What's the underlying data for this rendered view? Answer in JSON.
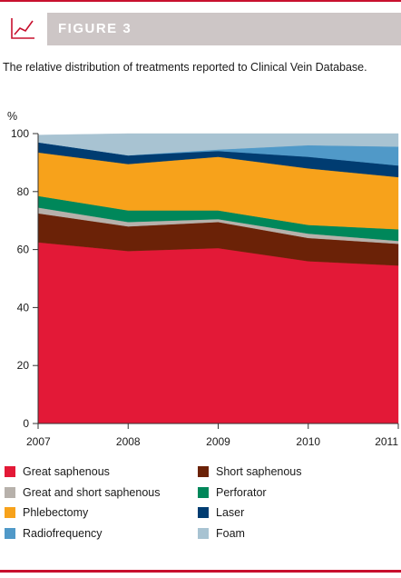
{
  "header": {
    "figure_label": "FIGURE 3",
    "icon": "line-chart-icon",
    "accent_color": "#c8102e"
  },
  "caption": "The relative distribution of treatments reported to Clinical Vein Database.",
  "chart_data": {
    "type": "area",
    "stacked": true,
    "title": "",
    "ylabel": "%",
    "xlabel": "",
    "x": [
      "2007",
      "2008",
      "2009",
      "2010",
      "2011"
    ],
    "ylim": [
      0,
      100
    ],
    "yticks": [
      "0",
      "20",
      "40",
      "60",
      "80",
      "100"
    ],
    "grid": false,
    "legend_position": "bottom",
    "series": [
      {
        "name": "Great saphenous",
        "color": "#e31937",
        "values": [
          62.5,
          59.5,
          60.5,
          56,
          54.5
        ]
      },
      {
        "name": "Short saphenous",
        "color": "#6b2207",
        "values": [
          10,
          8.5,
          9,
          8,
          7.5
        ]
      },
      {
        "name": "Great and short saphenous",
        "color": "#b7b1ab",
        "values": [
          2,
          1.5,
          1,
          1.5,
          1
        ]
      },
      {
        "name": "Perforator",
        "color": "#00875a",
        "values": [
          4,
          4,
          3,
          3,
          4
        ]
      },
      {
        "name": "Phlebectomy",
        "color": "#f7a21b",
        "values": [
          15,
          16,
          18.5,
          19.5,
          18
        ]
      },
      {
        "name": "Laser",
        "color": "#003c71",
        "values": [
          3.5,
          3,
          2,
          4,
          4
        ]
      },
      {
        "name": "Radiofrequency",
        "color": "#5099c8",
        "values": [
          0,
          0,
          0.5,
          4,
          6.5
        ]
      },
      {
        "name": "Foam",
        "color": "#a8c3d2",
        "values": [
          2.5,
          7.5,
          5.5,
          4,
          4.5
        ]
      }
    ]
  },
  "legend": {
    "left": [
      "Great saphenous",
      "Great and short saphenous",
      "Phlebectomy",
      "Radiofrequency"
    ],
    "right": [
      "Short saphenous",
      "Perforator",
      "Laser",
      "Foam"
    ]
  }
}
